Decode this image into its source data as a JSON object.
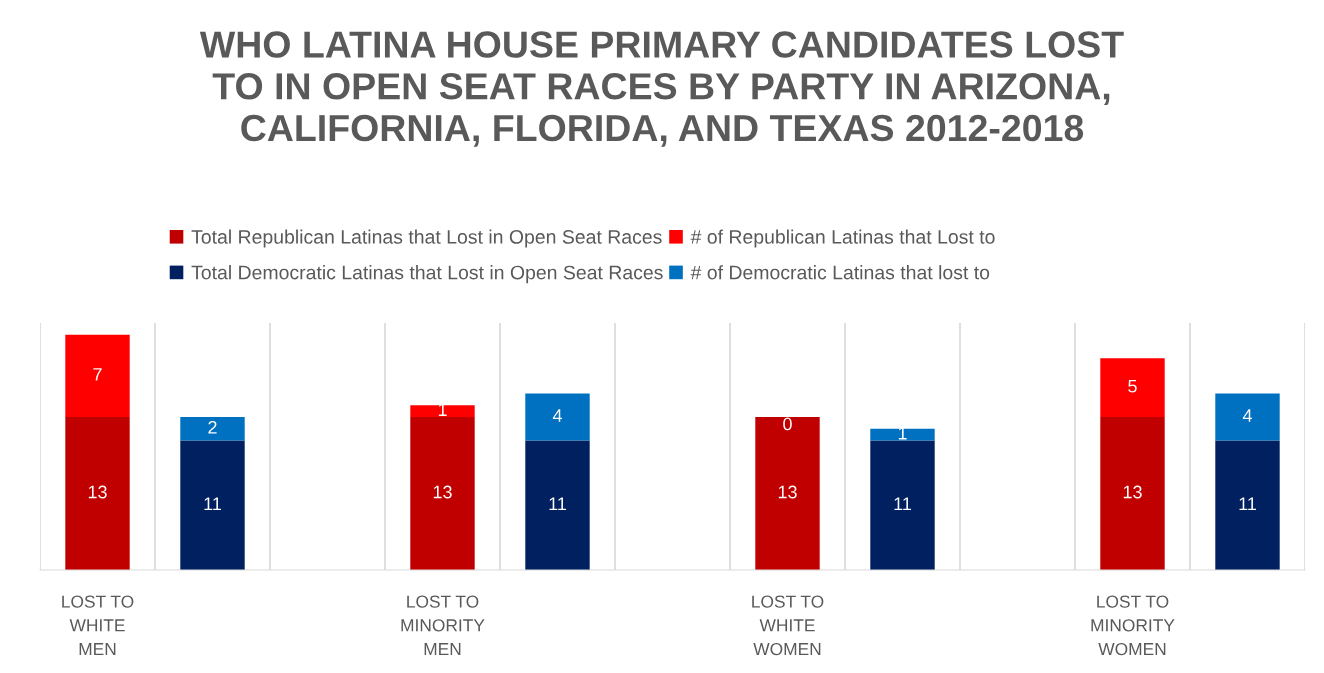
{
  "chart_data": {
    "type": "bar",
    "stacked": true,
    "title": "WHO LATINA HOUSE PRIMARY CANDIDATES LOST\nTO IN OPEN SEAT RACES BY PARTY IN ARIZONA,\nCALIFORNIA, FLORIDA, AND TEXAS 2012-2018",
    "categories": [
      "LOST TO\nWHITE\nMEN",
      null,
      null,
      "LOST TO\nMINORITY\nMEN",
      null,
      null,
      "LOST TO\nWHITE\nWOMEN",
      null,
      null,
      "LOST TO\nMINORITY\nWOMEN",
      null
    ],
    "series": [
      {
        "name": "Total Republican Latinas that Lost in Open Seat Races",
        "color": "#c00000",
        "values": [
          13,
          null,
          null,
          13,
          null,
          null,
          13,
          null,
          null,
          13,
          null
        ]
      },
      {
        "name": "# of Republican Latinas that Lost to",
        "color": "#ff0000",
        "values": [
          7,
          null,
          null,
          1,
          null,
          null,
          0,
          null,
          null,
          5,
          null
        ]
      },
      {
        "name": "Total Democratic Latinas that Lost in Open Seat Races",
        "color": "#002060",
        "values": [
          null,
          11,
          null,
          null,
          11,
          null,
          null,
          11,
          null,
          null,
          11
        ]
      },
      {
        "name": "# of Democratic Latinas that lost to",
        "color": "#0070c0",
        "values": [
          null,
          2,
          null,
          null,
          4,
          null,
          null,
          1,
          null,
          null,
          4
        ]
      }
    ],
    "data_labels": true,
    "grid": "x",
    "legend": "top",
    "tick_labels": "x"
  }
}
